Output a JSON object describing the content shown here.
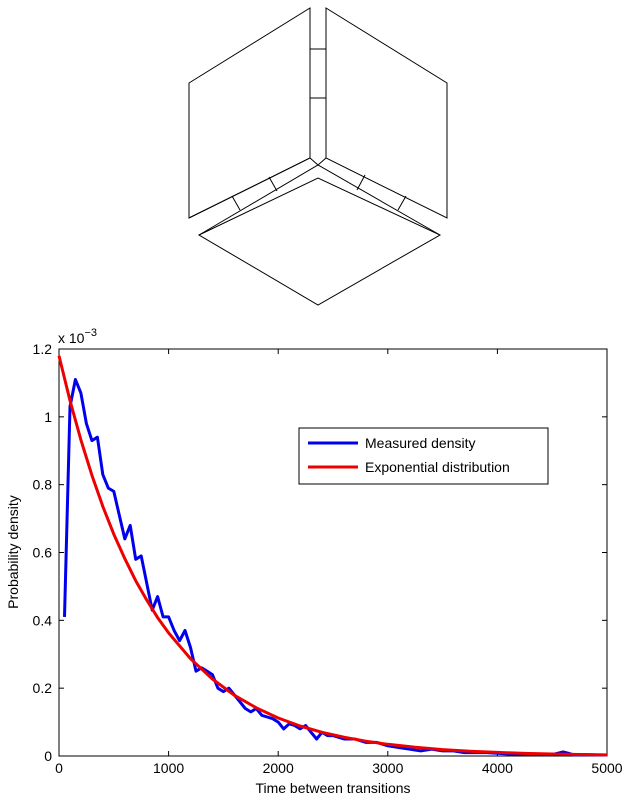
{
  "chart_data": {
    "type": "line",
    "xlabel": "Time between transitions",
    "ylabel": "Probability density",
    "xlim": [
      0,
      5000
    ],
    "ylim": [
      0,
      0.0012
    ],
    "x_ticks": [
      "0",
      "1000",
      "2000",
      "3000",
      "4000",
      "5000"
    ],
    "y_ticks": [
      "0",
      "0.2",
      "0.4",
      "0.6",
      "0.8",
      "1",
      "1.2"
    ],
    "y_exponent_base": "x 10",
    "y_exponent_power": "−3",
    "grid": false,
    "legend_position": "upper-right",
    "series": [
      {
        "name": "Measured density",
        "color": "#0000ee",
        "x": [
          50,
          100,
          150,
          200,
          250,
          300,
          350,
          400,
          450,
          500,
          550,
          600,
          650,
          700,
          750,
          800,
          850,
          900,
          950,
          1000,
          1050,
          1100,
          1150,
          1200,
          1250,
          1300,
          1350,
          1400,
          1450,
          1500,
          1550,
          1600,
          1650,
          1700,
          1750,
          1800,
          1850,
          1900,
          1950,
          2000,
          2050,
          2100,
          2150,
          2200,
          2250,
          2300,
          2350,
          2400,
          2450,
          2500,
          2600,
          2700,
          2800,
          2900,
          3000,
          3100,
          3200,
          3300,
          3400,
          3500,
          3600,
          3700,
          3800,
          3900,
          4000,
          4100,
          4200,
          4300,
          4400,
          4500,
          4600,
          4650,
          4700,
          4800,
          4900,
          5000
        ],
        "y": [
          0.00041,
          0.00103,
          0.00111,
          0.00107,
          0.00098,
          0.00093,
          0.00094,
          0.00083,
          0.00079,
          0.00078,
          0.00071,
          0.00064,
          0.00068,
          0.00058,
          0.00059,
          0.00051,
          0.00043,
          0.00047,
          0.00041,
          0.00041,
          0.00037,
          0.00034,
          0.00037,
          0.00032,
          0.00025,
          0.00026,
          0.00025,
          0.00024,
          0.0002,
          0.00019,
          0.0002,
          0.00018,
          0.00016,
          0.00014,
          0.00013,
          0.00014,
          0.00012,
          0.000115,
          0.00011,
          0.0001,
          8e-05,
          9.5e-05,
          9e-05,
          8e-05,
          9e-05,
          7e-05,
          5e-05,
          7e-05,
          6e-05,
          6e-05,
          5e-05,
          5e-05,
          4e-05,
          4e-05,
          3e-05,
          2.5e-05,
          2e-05,
          1.5e-05,
          2e-05,
          1.5e-05,
          1.5e-05,
          1e-05,
          1e-05,
          1e-05,
          8e-06,
          6e-06,
          6e-06,
          5e-06,
          4e-06,
          4e-06,
          1.2e-05,
          8e-06,
          3e-06,
          4e-06,
          3e-06,
          3e-06
        ]
      },
      {
        "name": "Exponential distribution",
        "color": "#ee0000",
        "rate": 0.00118,
        "x": [
          0,
          100,
          200,
          300,
          400,
          500,
          600,
          700,
          800,
          900,
          1000,
          1200,
          1400,
          1600,
          1800,
          2000,
          2200,
          2400,
          2600,
          2800,
          3000,
          3250,
          3500,
          3750,
          4000,
          4250,
          4500,
          4750,
          5000
        ],
        "y": [
          0.00118,
          0.001048,
          0.000932,
          0.000828,
          0.000736,
          0.000654,
          0.000582,
          0.000517,
          0.00046,
          0.000408,
          0.000363,
          0.000287,
          0.000227,
          0.000179,
          0.000142,
          0.000112,
          8.85e-05,
          7e-05,
          5.53e-05,
          4.37e-05,
          3.45e-05,
          2.56e-05,
          1.9e-05,
          1.41e-05,
          1.05e-05,
          7.8e-06,
          5.8e-06,
          4.3e-06,
          3.2e-06
        ]
      }
    ]
  }
}
